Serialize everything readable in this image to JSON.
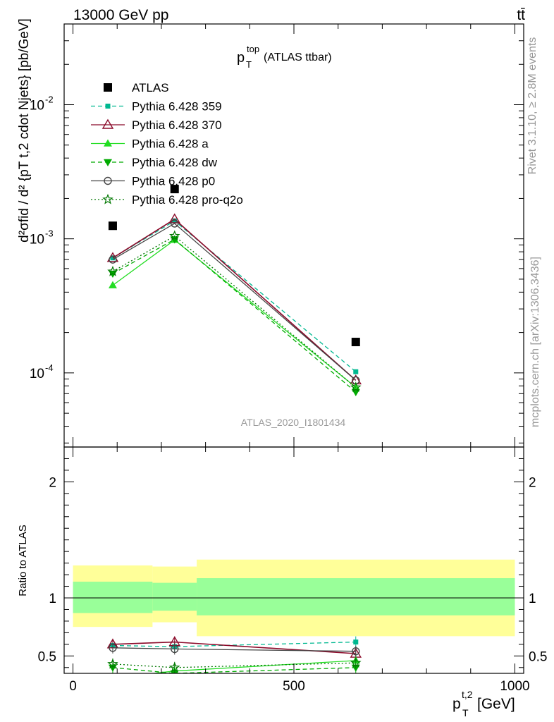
{
  "header": {
    "left": "13000 GeV pp",
    "right": "tt̄"
  },
  "plot_title": {
    "main": "p",
    "sub": "T",
    "sup": "top",
    "rest": " (ATLAS ttbar)"
  },
  "watermark": "ATLAS_2020_I1801434",
  "side_labels": {
    "rivet": "Rivet 3.1.10, ≥ 2.8M events",
    "mcplots": "mcplots.cern.ch [arXiv:1306.3436]"
  },
  "y_label_main": {
    "numerator": "d²σ^fid",
    "denominator": "d² {p_T^t,2 cdot N_jets}",
    "unit": "} [pb/GeV]",
    "display": "d²σfid / d² {pT t,2 cdot Njets} [pb/GeV]"
  },
  "y_label_ratio": "Ratio to ATLAS",
  "x_label": {
    "main": "p",
    "sub": "T",
    "sup": "t,2",
    "rest": " [GeV]"
  },
  "colors": {
    "atlas": "#000000",
    "p359": "#00b890",
    "p370": "#8b0a2a",
    "a": "#22dd22",
    "dw": "#00aa00",
    "p0": "#444444",
    "pro_q2o": "#007700",
    "band_inner": "#99ff99",
    "band_outer": "#ffff99"
  },
  "chart_data": [
    {
      "type": "scatter",
      "panel": "main",
      "yscale": "log",
      "xlim": [
        -20,
        1020
      ],
      "ylim": [
        2.8e-05,
        0.04
      ],
      "x_ticks": [
        "0",
        "500",
        "1000"
      ],
      "y_ticks": [
        "10^-4",
        "10^-3",
        "10^-2"
      ],
      "x": [
        90,
        230,
        640
      ],
      "series": [
        {
          "name": "ATLAS",
          "key": "atlas",
          "values": [
            0.00125,
            0.00235,
            0.00017
          ]
        },
        {
          "name": "Pythia 6.428 359",
          "key": "p359",
          "values": [
            0.00072,
            0.00136,
            0.000102
          ]
        },
        {
          "name": "Pythia 6.428 370",
          "key": "p370",
          "values": [
            0.00072,
            0.0014,
            8.8e-05
          ]
        },
        {
          "name": "Pythia 6.428 a",
          "key": "a",
          "values": [
            0.00045,
            0.00098,
            7.8e-05
          ]
        },
        {
          "name": "Pythia 6.428 dw",
          "key": "dw",
          "values": [
            0.00055,
            0.00099,
            7.2e-05
          ]
        },
        {
          "name": "Pythia 6.428 p0",
          "key": "p0",
          "values": [
            0.0007,
            0.0013,
            8.8e-05
          ]
        },
        {
          "name": "Pythia 6.428 pro-q2o",
          "key": "pro_q2o",
          "values": [
            0.00057,
            0.00105,
            7.8e-05
          ]
        }
      ]
    },
    {
      "type": "line",
      "panel": "ratio",
      "ylabel": "Ratio to ATLAS",
      "xlim": [
        -20,
        1020
      ],
      "ylim": [
        0.35,
        2.3
      ],
      "y_ticks": [
        "0.5",
        "1",
        "2"
      ],
      "reference": 1,
      "bands": [
        {
          "x0": 0,
          "x1": 180,
          "inner": [
            0.87,
            1.14
          ],
          "outer": [
            0.75,
            1.28
          ]
        },
        {
          "x0": 180,
          "x1": 280,
          "inner": [
            0.89,
            1.13
          ],
          "outer": [
            0.79,
            1.27
          ]
        },
        {
          "x0": 280,
          "x1": 1000,
          "inner": [
            0.85,
            1.17
          ],
          "outer": [
            0.67,
            1.33
          ]
        }
      ],
      "x": [
        90,
        230,
        640
      ],
      "series": [
        {
          "name": "Pythia 6.428 359",
          "key": "p359",
          "values": [
            0.59,
            0.58,
            0.62
          ]
        },
        {
          "name": "Pythia 6.428 370",
          "key": "p370",
          "values": [
            0.6,
            0.62,
            0.52
          ]
        },
        {
          "name": "Pythia 6.428 a",
          "key": "a",
          "values": [
            0.31,
            0.37,
            0.46
          ]
        },
        {
          "name": "Pythia 6.428 dw",
          "key": "dw",
          "values": [
            0.4,
            0.35,
            0.4
          ]
        },
        {
          "name": "Pythia 6.428 p0",
          "key": "p0",
          "values": [
            0.57,
            0.56,
            0.54
          ]
        },
        {
          "name": "Pythia 6.428 pro-q2o",
          "key": "pro_q2o",
          "values": [
            0.43,
            0.4,
            0.44
          ]
        }
      ]
    }
  ]
}
